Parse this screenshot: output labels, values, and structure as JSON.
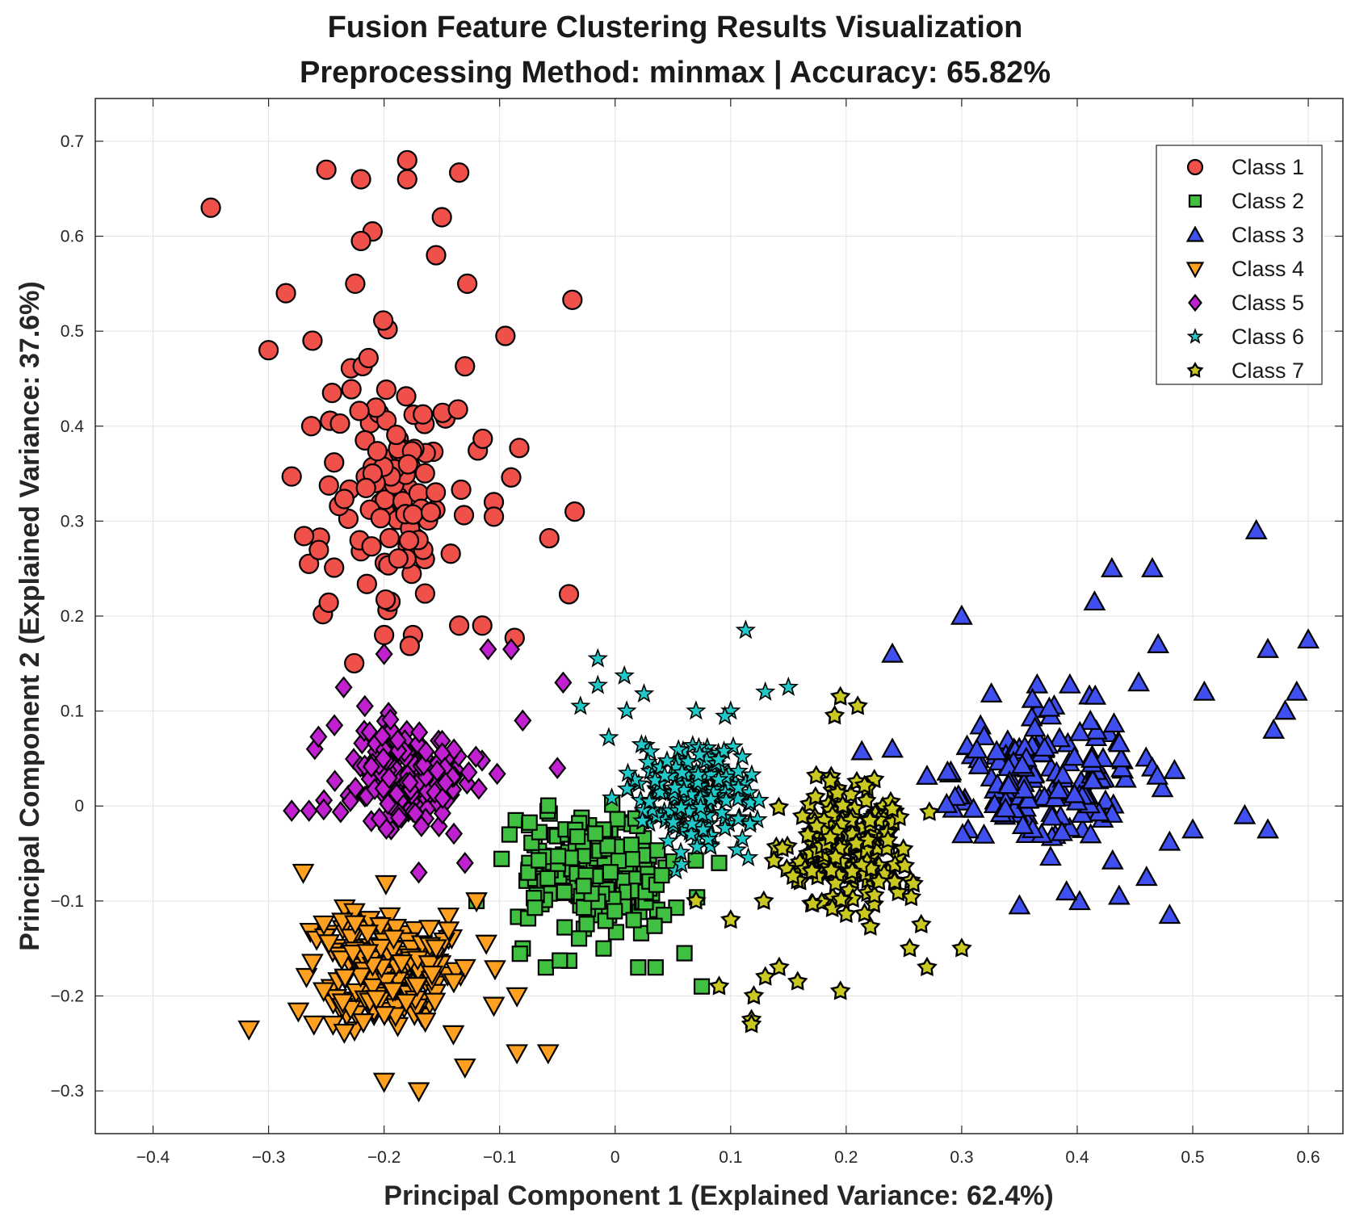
{
  "chart_data": {
    "type": "scatter",
    "title": "Fusion Feature Clustering Results Visualization",
    "subtitle": "Preprocessing Method: minmax | Accuracy: 65.82%",
    "xlabel": "Principal Component 1 (Explained Variance: 62.4%)",
    "ylabel": "Principal Component 2 (Explained Variance: 37.6%)",
    "xlim": [
      -0.45,
      0.63
    ],
    "ylim": [
      -0.345,
      0.745
    ],
    "xticks": [
      -0.4,
      -0.3,
      -0.2,
      -0.1,
      0,
      0.1,
      0.2,
      0.3,
      0.4,
      0.5,
      0.6
    ],
    "xtick_labels": [
      "−0.4",
      "−0.3",
      "−0.2",
      "−0.1",
      "0",
      "0.1",
      "0.2",
      "0.3",
      "0.4",
      "0.5",
      "0.6"
    ],
    "yticks": [
      -0.3,
      -0.2,
      -0.1,
      0,
      0.1,
      0.2,
      0.3,
      0.4,
      0.5,
      0.6,
      0.7
    ],
    "ytick_labels": [
      "−0.3",
      "−0.2",
      "−0.1",
      "0",
      "0.1",
      "0.2",
      "0.3",
      "0.4",
      "0.5",
      "0.6",
      "0.7"
    ],
    "grid": true,
    "legend_position": "top-right",
    "series": [
      {
        "name": "Class 1",
        "marker": "circle",
        "color": "#f0504a",
        "center": [
          -0.19,
          0.35
        ],
        "spread": [
          0.05,
          0.12
        ],
        "count": 150,
        "points": [
          [
            -0.35,
            0.63
          ],
          [
            -0.25,
            0.67
          ],
          [
            -0.22,
            0.66
          ],
          [
            -0.18,
            0.68
          ],
          [
            -0.135,
            0.667
          ],
          [
            -0.18,
            0.66
          ],
          [
            -0.21,
            0.605
          ],
          [
            -0.15,
            0.62
          ],
          [
            -0.22,
            0.595
          ],
          [
            -0.155,
            0.58
          ],
          [
            -0.285,
            0.54
          ],
          [
            -0.225,
            0.55
          ],
          [
            -0.128,
            0.55
          ],
          [
            -0.037,
            0.533
          ],
          [
            -0.3,
            0.48
          ],
          [
            -0.262,
            0.49
          ],
          [
            -0.095,
            0.495
          ],
          [
            -0.245,
            0.435
          ],
          [
            -0.13,
            0.463
          ],
          [
            -0.263,
            0.4
          ],
          [
            -0.083,
            0.377
          ],
          [
            -0.28,
            0.347
          ],
          [
            -0.09,
            0.346
          ],
          [
            -0.105,
            0.32
          ],
          [
            -0.035,
            0.31
          ],
          [
            -0.265,
            0.255
          ],
          [
            -0.057,
            0.282
          ],
          [
            -0.04,
            0.223
          ],
          [
            -0.253,
            0.202
          ],
          [
            -0.175,
            0.18
          ],
          [
            -0.115,
            0.19
          ],
          [
            -0.087,
            0.177
          ],
          [
            -0.2,
            0.18
          ],
          [
            -0.135,
            0.19
          ]
        ]
      },
      {
        "name": "Class 2",
        "marker": "square",
        "color": "#40c040",
        "center": [
          -0.02,
          -0.07
        ],
        "spread": [
          0.055,
          0.05
        ],
        "count": 230,
        "points": [
          [
            0.075,
            -0.19
          ],
          [
            0.02,
            -0.17
          ],
          [
            0.035,
            -0.17
          ],
          [
            -0.08,
            -0.15
          ],
          [
            -0.06,
            -0.17
          ],
          [
            -0.01,
            -0.15
          ],
          [
            0.06,
            -0.155
          ],
          [
            -0.12,
            -0.1
          ],
          [
            0.09,
            -0.06
          ]
        ]
      },
      {
        "name": "Class 3",
        "marker": "triangle-up",
        "color": "#4050f0",
        "center": [
          0.37,
          0.03
        ],
        "spread": [
          0.075,
          0.065
        ],
        "count": 200,
        "points": [
          [
            0.555,
            0.29
          ],
          [
            0.43,
            0.25
          ],
          [
            0.465,
            0.25
          ],
          [
            0.415,
            0.215
          ],
          [
            0.6,
            0.175
          ],
          [
            0.565,
            0.165
          ],
          [
            0.59,
            0.12
          ],
          [
            0.51,
            0.12
          ],
          [
            0.48,
            -0.115
          ],
          [
            0.565,
            -0.025
          ],
          [
            0.545,
            -0.01
          ],
          [
            0.35,
            -0.105
          ],
          [
            0.5,
            -0.025
          ],
          [
            0.46,
            -0.075
          ],
          [
            0.3,
            0.2
          ],
          [
            0.47,
            0.17
          ],
          [
            0.57,
            0.08
          ],
          [
            0.58,
            0.1
          ],
          [
            0.24,
            0.16
          ],
          [
            0.24,
            0.06
          ]
        ]
      },
      {
        "name": "Class 4",
        "marker": "triangle-down",
        "color": "#ffa020",
        "center": [
          -0.2,
          -0.17
        ],
        "spread": [
          0.05,
          0.05
        ],
        "count": 230,
        "points": [
          [
            -0.317,
            -0.235
          ],
          [
            -0.085,
            -0.2
          ],
          [
            -0.085,
            -0.26
          ],
          [
            -0.058,
            -0.26
          ],
          [
            -0.2,
            -0.29
          ],
          [
            -0.17,
            -0.3
          ],
          [
            -0.13,
            -0.275
          ],
          [
            -0.105,
            -0.21
          ],
          [
            -0.14,
            -0.24
          ],
          [
            -0.27,
            -0.07
          ],
          [
            -0.12,
            -0.1
          ]
        ]
      },
      {
        "name": "Class 5",
        "marker": "diamond",
        "color": "#c020d0",
        "center": [
          -0.18,
          0.03
        ],
        "spread": [
          0.045,
          0.05
        ],
        "count": 200,
        "points": [
          [
            -0.28,
            -0.005
          ],
          [
            -0.265,
            -0.005
          ],
          [
            -0.26,
            0.06
          ],
          [
            -0.243,
            0.085
          ],
          [
            -0.235,
            0.125
          ],
          [
            -0.09,
            0.165
          ],
          [
            -0.045,
            0.13
          ],
          [
            -0.11,
            0.165
          ],
          [
            -0.05,
            0.04
          ],
          [
            -0.08,
            0.09
          ],
          [
            -0.2,
            0.16
          ],
          [
            -0.17,
            -0.07
          ],
          [
            -0.13,
            -0.06
          ]
        ]
      },
      {
        "name": "Class 6",
        "marker": "star",
        "color": "#20c8c8",
        "center": [
          0.07,
          0.01
        ],
        "spread": [
          0.045,
          0.045
        ],
        "count": 200,
        "points": [
          [
            0.113,
            0.185
          ],
          [
            -0.015,
            0.155
          ],
          [
            -0.015,
            0.127
          ],
          [
            0.008,
            0.137
          ],
          [
            0.025,
            0.118
          ],
          [
            -0.03,
            0.105
          ],
          [
            0.15,
            0.125
          ],
          [
            0.13,
            0.12
          ],
          [
            0.1,
            0.1
          ],
          [
            0.01,
            0.1
          ],
          [
            0.07,
            0.1
          ]
        ]
      },
      {
        "name": "Class 7",
        "marker": "star-outlined",
        "color": "#c8c820",
        "center": [
          0.2,
          -0.04
        ],
        "spread": [
          0.045,
          0.05
        ],
        "count": 220,
        "points": [
          [
            0.118,
            -0.225
          ],
          [
            0.118,
            -0.23
          ],
          [
            0.12,
            -0.2
          ],
          [
            0.13,
            -0.18
          ],
          [
            0.142,
            -0.17
          ],
          [
            0.158,
            -0.185
          ],
          [
            0.195,
            -0.195
          ],
          [
            0.09,
            -0.19
          ],
          [
            0.3,
            -0.15
          ],
          [
            0.27,
            -0.17
          ],
          [
            0.255,
            -0.15
          ],
          [
            0.265,
            -0.125
          ],
          [
            0.195,
            0.115
          ],
          [
            0.21,
            0.105
          ],
          [
            0.19,
            0.095
          ],
          [
            0.07,
            -0.1
          ],
          [
            0.1,
            -0.12
          ]
        ]
      }
    ]
  }
}
